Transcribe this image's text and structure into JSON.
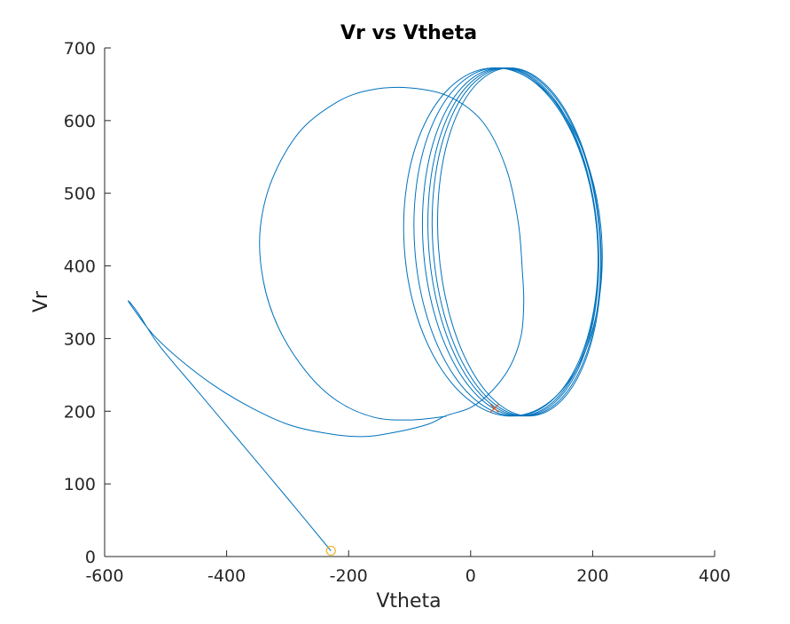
{
  "chart_data": {
    "type": "line",
    "title": "Vr vs Vtheta",
    "xlabel": "Vtheta",
    "ylabel": "Vr",
    "xlim": [
      -600,
      400
    ],
    "ylim": [
      0,
      700
    ],
    "xticks": [
      "-600",
      "-400",
      "-200",
      "0",
      "200",
      "400"
    ],
    "yticks": [
      "0",
      "100",
      "200",
      "300",
      "400",
      "500",
      "600",
      "700"
    ],
    "grid": false,
    "box": false,
    "colors": {
      "line": "#0072BD",
      "start_marker": "#EDB120",
      "end_marker": "#D95319",
      "axis": "#262626"
    },
    "series": [
      {
        "type": "trajectory",
        "points": [
          [
            -229,
            8
          ],
          [
            -300,
            80
          ],
          [
            -380,
            160
          ],
          [
            -450,
            230
          ],
          [
            -510,
            290
          ],
          [
            -545,
            335
          ],
          [
            -561,
            352
          ],
          [
            -552,
            340
          ],
          [
            -520,
            305
          ],
          [
            -475,
            270
          ],
          [
            -420,
            235
          ],
          [
            -360,
            205
          ],
          [
            -300,
            182
          ],
          [
            -240,
            170
          ],
          [
            -180,
            165
          ],
          [
            -130,
            170
          ],
          [
            -70,
            182
          ],
          [
            -40,
            194
          ],
          [
            0,
            205
          ],
          [
            35,
            228
          ],
          [
            65,
            262
          ],
          [
            83,
            305
          ],
          [
            87,
            350
          ],
          [
            85,
            390
          ],
          [
            78,
            460
          ],
          [
            58,
            535
          ],
          [
            20,
            598
          ],
          [
            -35,
            633
          ],
          [
            -100,
            645
          ],
          [
            -165,
            642
          ],
          [
            -220,
            625
          ],
          [
            -280,
            585
          ],
          [
            -325,
            520
          ],
          [
            -345,
            450
          ],
          [
            -340,
            380
          ],
          [
            -315,
            315
          ],
          [
            -270,
            255
          ],
          [
            -220,
            215
          ],
          [
            -160,
            192
          ],
          [
            -100,
            188
          ],
          [
            -40,
            193
          ]
        ]
      },
      {
        "type": "ellipse_loops",
        "cy": 433,
        "ry": 240,
        "loops": [
          {
            "cx": 53,
            "rx": 162
          },
          {
            "cx": 58,
            "rx": 150
          },
          {
            "cx": 65,
            "rx": 143
          },
          {
            "cx": 70,
            "rx": 139
          },
          {
            "cx": 75,
            "rx": 137
          },
          {
            "cx": 80,
            "rx": 133
          }
        ]
      }
    ],
    "markers": [
      {
        "name": "start",
        "symbol": "circle",
        "x": -229,
        "y": 8
      },
      {
        "name": "end",
        "symbol": "x",
        "x": 39,
        "y": 204
      }
    ]
  }
}
